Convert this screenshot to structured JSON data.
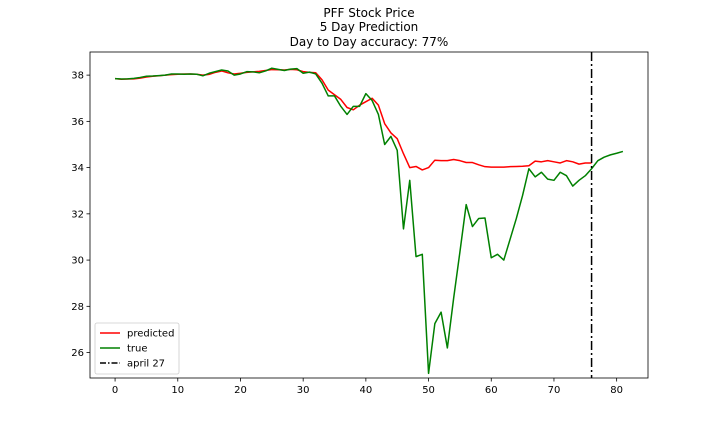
{
  "chart_data": {
    "type": "line",
    "title": "PFF Stock Price",
    "subtitle": "5 Day Prediction",
    "accuracy_text": "Day to Day accuracy: 77%",
    "xlabel": "",
    "ylabel": "",
    "xlim": [
      -4,
      85
    ],
    "ylim": [
      24.9,
      39
    ],
    "x_ticks": [
      0,
      10,
      20,
      30,
      40,
      50,
      60,
      70,
      80
    ],
    "y_ticks": [
      26,
      28,
      30,
      32,
      34,
      36,
      38
    ],
    "grid": false,
    "legend_position": "lower-left",
    "series": [
      {
        "name": "predicted",
        "color": "#ff0000",
        "x": [
          0,
          1,
          2,
          3,
          4,
          5,
          6,
          7,
          8,
          9,
          10,
          11,
          12,
          13,
          14,
          15,
          16,
          17,
          18,
          19,
          20,
          21,
          22,
          23,
          24,
          25,
          26,
          27,
          28,
          29,
          30,
          31,
          32,
          33,
          34,
          35,
          36,
          37,
          38,
          39,
          40,
          41,
          42,
          43,
          44,
          45,
          46,
          47,
          48,
          49,
          50,
          51,
          52,
          53,
          54,
          55,
          56,
          57,
          58,
          59,
          60,
          61,
          62,
          63,
          64,
          65,
          66,
          67,
          68,
          69,
          70,
          71,
          72,
          73,
          74,
          75,
          76
        ],
        "values": [
          37.85,
          37.82,
          37.83,
          37.84,
          37.87,
          37.92,
          37.95,
          37.97,
          38.0,
          38.02,
          38.04,
          38.05,
          38.05,
          38.04,
          38.0,
          38.03,
          38.12,
          38.18,
          38.1,
          38.05,
          38.08,
          38.12,
          38.14,
          38.16,
          38.2,
          38.24,
          38.23,
          38.22,
          38.25,
          38.23,
          38.15,
          38.12,
          38.1,
          37.8,
          37.35,
          37.15,
          36.95,
          36.6,
          36.5,
          36.7,
          36.85,
          37.0,
          36.7,
          35.9,
          35.5,
          35.25,
          34.6,
          34.0,
          34.05,
          33.9,
          34.0,
          34.32,
          34.3,
          34.3,
          34.35,
          34.3,
          34.22,
          34.22,
          34.12,
          34.04,
          34.02,
          34.02,
          34.02,
          34.04,
          34.05,
          34.06,
          34.08,
          34.28,
          34.25,
          34.3,
          34.25,
          34.2,
          34.3,
          34.25,
          34.15,
          34.2,
          34.2
        ]
      },
      {
        "name": "true",
        "color": "#008000",
        "x": [
          0,
          1,
          2,
          3,
          4,
          5,
          6,
          7,
          8,
          9,
          10,
          11,
          12,
          13,
          14,
          15,
          16,
          17,
          18,
          19,
          20,
          21,
          22,
          23,
          24,
          25,
          26,
          27,
          28,
          29,
          30,
          31,
          32,
          33,
          34,
          35,
          36,
          37,
          38,
          39,
          40,
          41,
          42,
          43,
          44,
          45,
          46,
          47,
          48,
          49,
          50,
          51,
          52,
          53,
          54,
          55,
          56,
          57,
          58,
          59,
          60,
          61,
          62,
          63,
          64,
          65,
          66,
          67,
          68,
          69,
          70,
          71,
          72,
          73,
          74,
          75,
          76,
          77,
          78,
          79,
          80,
          81
        ],
        "values": [
          37.85,
          37.83,
          37.84,
          37.86,
          37.9,
          37.95,
          37.96,
          37.98,
          38.0,
          38.05,
          38.05,
          38.04,
          38.05,
          38.04,
          37.97,
          38.08,
          38.15,
          38.22,
          38.18,
          38.0,
          38.05,
          38.15,
          38.14,
          38.1,
          38.18,
          38.3,
          38.25,
          38.2,
          38.26,
          38.28,
          38.08,
          38.13,
          38.05,
          37.65,
          37.1,
          37.1,
          36.65,
          36.3,
          36.65,
          36.65,
          37.2,
          36.9,
          36.3,
          35.0,
          35.35,
          34.75,
          31.35,
          33.45,
          30.15,
          30.25,
          25.1,
          27.25,
          27.75,
          26.2,
          28.35,
          30.35,
          32.4,
          31.45,
          31.8,
          31.82,
          30.1,
          30.25,
          30.0,
          30.9,
          31.8,
          32.8,
          33.95,
          33.6,
          33.8,
          33.5,
          33.45,
          33.8,
          33.65,
          33.2,
          33.45,
          33.65,
          33.95,
          34.3,
          34.45,
          34.55,
          34.62,
          34.7
        ]
      }
    ],
    "annotations": [
      {
        "type": "vline",
        "x": 76,
        "name": "april 27",
        "color": "#000000",
        "style": "dashdot"
      }
    ]
  }
}
